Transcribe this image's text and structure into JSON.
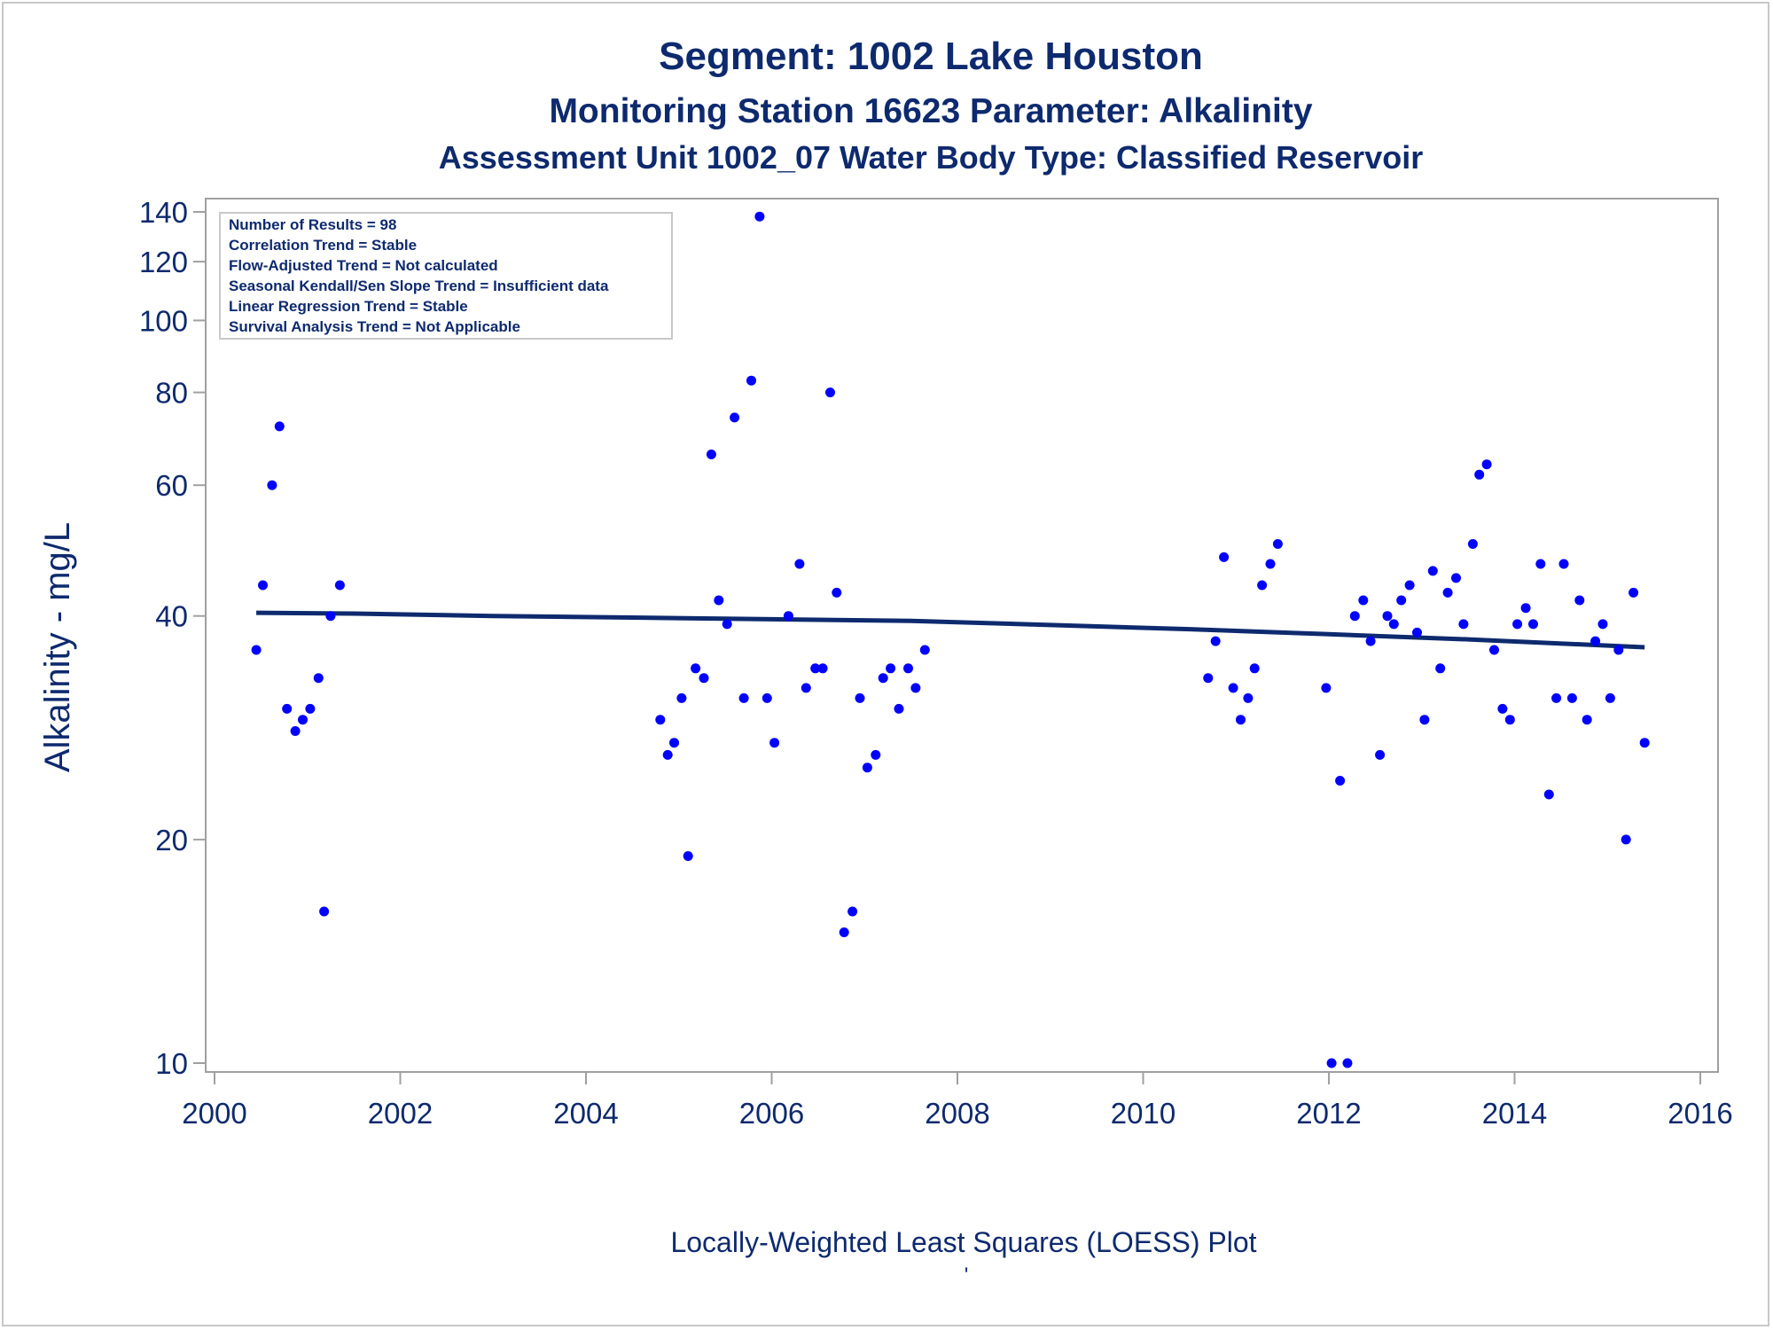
{
  "titles": {
    "line1": "Segment: 1002  Lake Houston",
    "line2": "Monitoring Station 16623 Parameter: Alkalinity",
    "line3": "Assessment Unit 1002_07   Water Body Type: Classified Reservoir"
  },
  "footnote": "Locally-Weighted Least Squares (LOESS) Plot",
  "footnote_mark": "'",
  "stats": [
    "Number of Results = 98",
    "Correlation Trend = Stable",
    "Flow-Adjusted Trend = Not calculated",
    "Seasonal Kendall/Sen Slope Trend = Insufficient data",
    "Linear Regression Trend = Stable",
    "Survival Analysis Trend = Not Applicable"
  ],
  "colors": {
    "points": "#0000ff",
    "loess_line": "#0e2a6e",
    "text": "#0e2a6e",
    "frame": "#a0a0a0"
  },
  "chart_data": {
    "type": "scatter",
    "ylabel": "Alkalinity - mg/L",
    "xlabel": "",
    "x_scale": "linear (year)",
    "y_scale": "log",
    "xlim": [
      2000,
      2016
    ],
    "ylim": [
      10,
      140
    ],
    "x_ticks": [
      "2000",
      "2002",
      "2004",
      "2006",
      "2008",
      "2010",
      "2012",
      "2014",
      "2016"
    ],
    "y_ticks": [
      10,
      20,
      40,
      60,
      80,
      100,
      120,
      140
    ],
    "legend_position": "top-left",
    "grid": false,
    "points": [
      [
        2000.45,
        36
      ],
      [
        2000.52,
        44
      ],
      [
        2000.62,
        60
      ],
      [
        2000.7,
        72
      ],
      [
        2000.78,
        30
      ],
      [
        2000.87,
        28
      ],
      [
        2000.95,
        29
      ],
      [
        2001.03,
        30
      ],
      [
        2001.12,
        33
      ],
      [
        2001.18,
        16
      ],
      [
        2001.25,
        40
      ],
      [
        2001.35,
        44
      ],
      [
        2004.8,
        29
      ],
      [
        2004.88,
        26
      ],
      [
        2004.95,
        27
      ],
      [
        2005.03,
        31
      ],
      [
        2005.1,
        19
      ],
      [
        2005.18,
        34
      ],
      [
        2005.27,
        33
      ],
      [
        2005.35,
        66
      ],
      [
        2005.43,
        42
      ],
      [
        2005.52,
        39
      ],
      [
        2005.6,
        74
      ],
      [
        2005.7,
        31
      ],
      [
        2005.78,
        83
      ],
      [
        2005.87,
        138
      ],
      [
        2005.95,
        31
      ],
      [
        2006.03,
        27
      ],
      [
        2006.18,
        40
      ],
      [
        2006.3,
        47
      ],
      [
        2006.37,
        32
      ],
      [
        2006.47,
        34
      ],
      [
        2006.55,
        34
      ],
      [
        2006.63,
        80
      ],
      [
        2006.7,
        43
      ],
      [
        2006.78,
        15
      ],
      [
        2006.87,
        16
      ],
      [
        2006.95,
        31
      ],
      [
        2007.03,
        25
      ],
      [
        2007.12,
        26
      ],
      [
        2007.2,
        33
      ],
      [
        2007.28,
        34
      ],
      [
        2007.37,
        30
      ],
      [
        2007.47,
        34
      ],
      [
        2007.55,
        32
      ],
      [
        2007.65,
        36
      ],
      [
        2010.7,
        33
      ],
      [
        2010.78,
        37
      ],
      [
        2010.87,
        48
      ],
      [
        2010.97,
        32
      ],
      [
        2011.05,
        29
      ],
      [
        2011.13,
        31
      ],
      [
        2011.2,
        34
      ],
      [
        2011.28,
        44
      ],
      [
        2011.37,
        47
      ],
      [
        2011.45,
        50
      ],
      [
        2011.97,
        32
      ],
      [
        2012.03,
        10
      ],
      [
        2012.12,
        24
      ],
      [
        2012.2,
        10
      ],
      [
        2012.28,
        40
      ],
      [
        2012.37,
        42
      ],
      [
        2012.45,
        37
      ],
      [
        2012.55,
        26
      ],
      [
        2012.63,
        40
      ],
      [
        2012.7,
        39
      ],
      [
        2012.78,
        42
      ],
      [
        2012.87,
        44
      ],
      [
        2012.95,
        38
      ],
      [
        2013.03,
        29
      ],
      [
        2013.12,
        46
      ],
      [
        2013.2,
        34
      ],
      [
        2013.28,
        43
      ],
      [
        2013.37,
        45
      ],
      [
        2013.45,
        39
      ],
      [
        2013.55,
        50
      ],
      [
        2013.62,
        62
      ],
      [
        2013.7,
        64
      ],
      [
        2013.78,
        36
      ],
      [
        2013.87,
        30
      ],
      [
        2013.95,
        29
      ],
      [
        2014.03,
        39
      ],
      [
        2014.12,
        41
      ],
      [
        2014.2,
        39
      ],
      [
        2014.28,
        47
      ],
      [
        2014.37,
        23
      ],
      [
        2014.45,
        31
      ],
      [
        2014.53,
        47
      ],
      [
        2014.62,
        31
      ],
      [
        2014.7,
        42
      ],
      [
        2014.78,
        29
      ],
      [
        2014.87,
        37
      ],
      [
        2014.95,
        39
      ],
      [
        2015.03,
        31
      ],
      [
        2015.12,
        36
      ],
      [
        2015.2,
        20
      ],
      [
        2015.28,
        43
      ],
      [
        2015.4,
        27
      ]
    ],
    "loess_line": {
      "type": "line",
      "x": [
        2000.45,
        2001.5,
        2003.0,
        2004.5,
        2006.0,
        2007.5,
        2009.0,
        2010.5,
        2012.0,
        2013.5,
        2015.4
      ],
      "y": [
        40.4,
        40.3,
        40.0,
        39.8,
        39.6,
        39.4,
        38.9,
        38.4,
        37.8,
        37.2,
        36.3
      ]
    }
  }
}
